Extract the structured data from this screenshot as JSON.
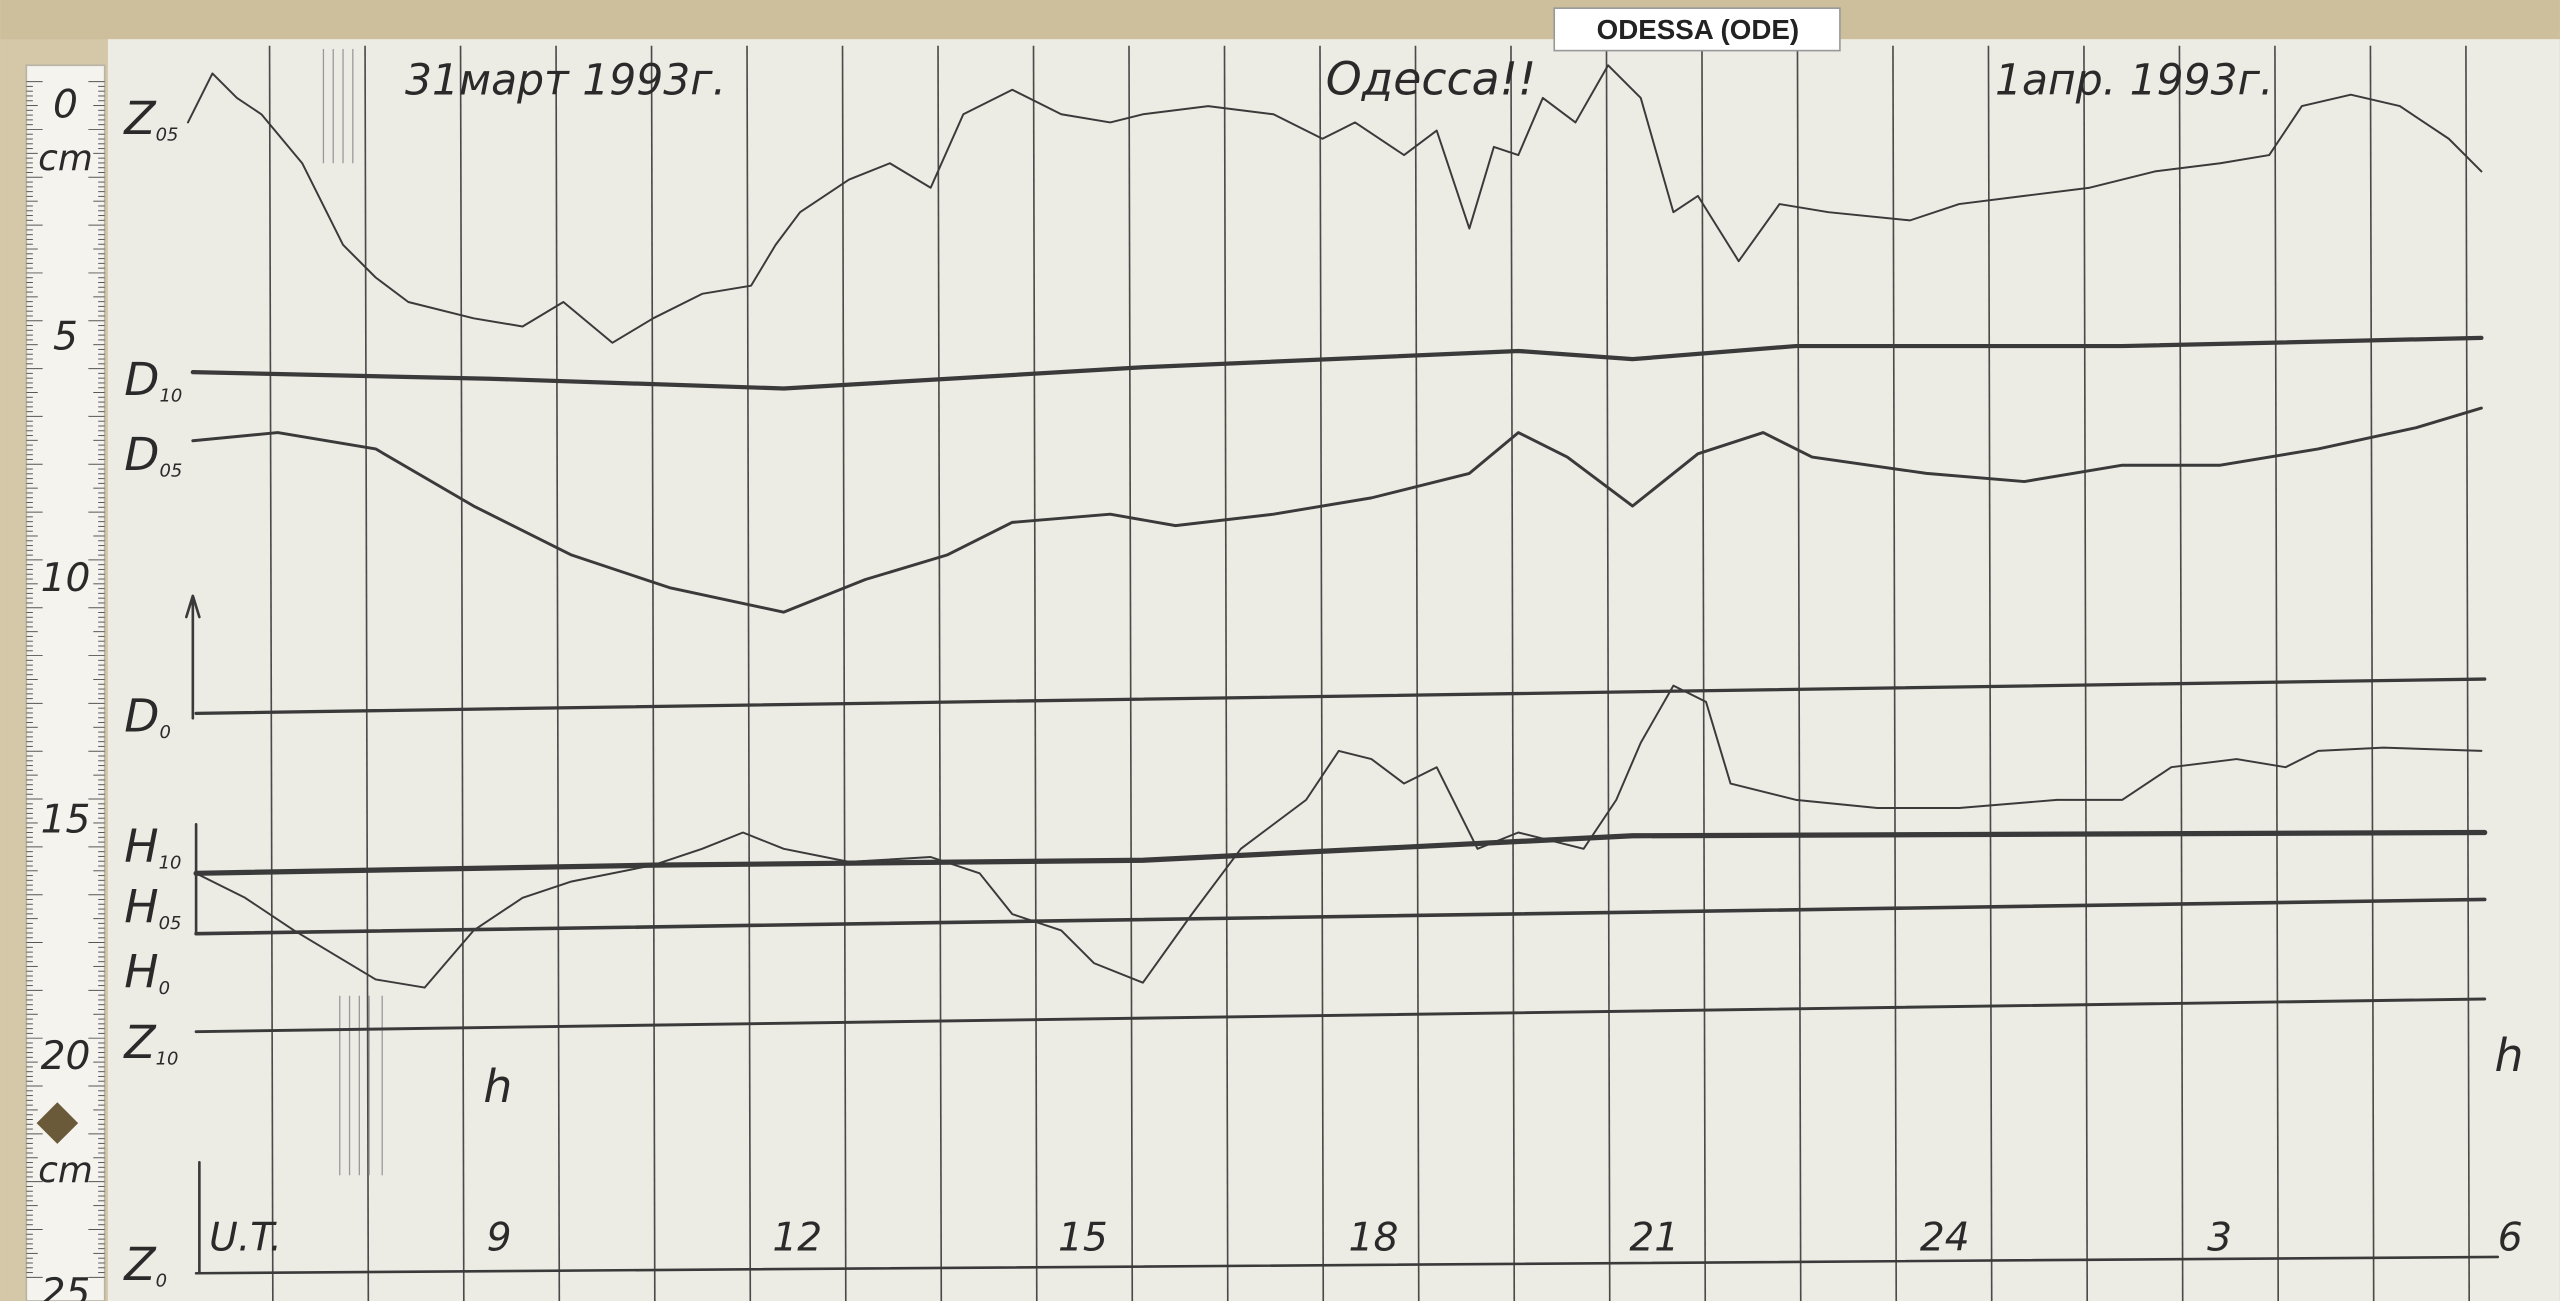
{
  "label": "ODESSA (ODE)",
  "header": {
    "date_left": "31март 1993г.",
    "station": "Одесса!!",
    "date_right": "1апр. 1993г."
  },
  "ruler": {
    "labels": [
      "0",
      "cm",
      "5",
      "10",
      "15",
      "20",
      "cm",
      "25"
    ]
  },
  "traces": [
    {
      "letter": "Z",
      "sub": "05"
    },
    {
      "letter": "D",
      "sub": "10"
    },
    {
      "letter": "D",
      "sub": "05"
    },
    {
      "letter": "D",
      "sub": "0"
    },
    {
      "letter": "H",
      "sub": "10"
    },
    {
      "letter": "H",
      "sub": "05"
    },
    {
      "letter": "H",
      "sub": "0"
    },
    {
      "letter": "Z",
      "sub": "10"
    },
    {
      "letter": "Z",
      "sub": "0"
    }
  ],
  "time_axis": {
    "labels": [
      "U.T.",
      "9",
      "12",
      "15",
      "18",
      "21",
      "24",
      "3",
      "6"
    ],
    "unit": "h"
  }
}
